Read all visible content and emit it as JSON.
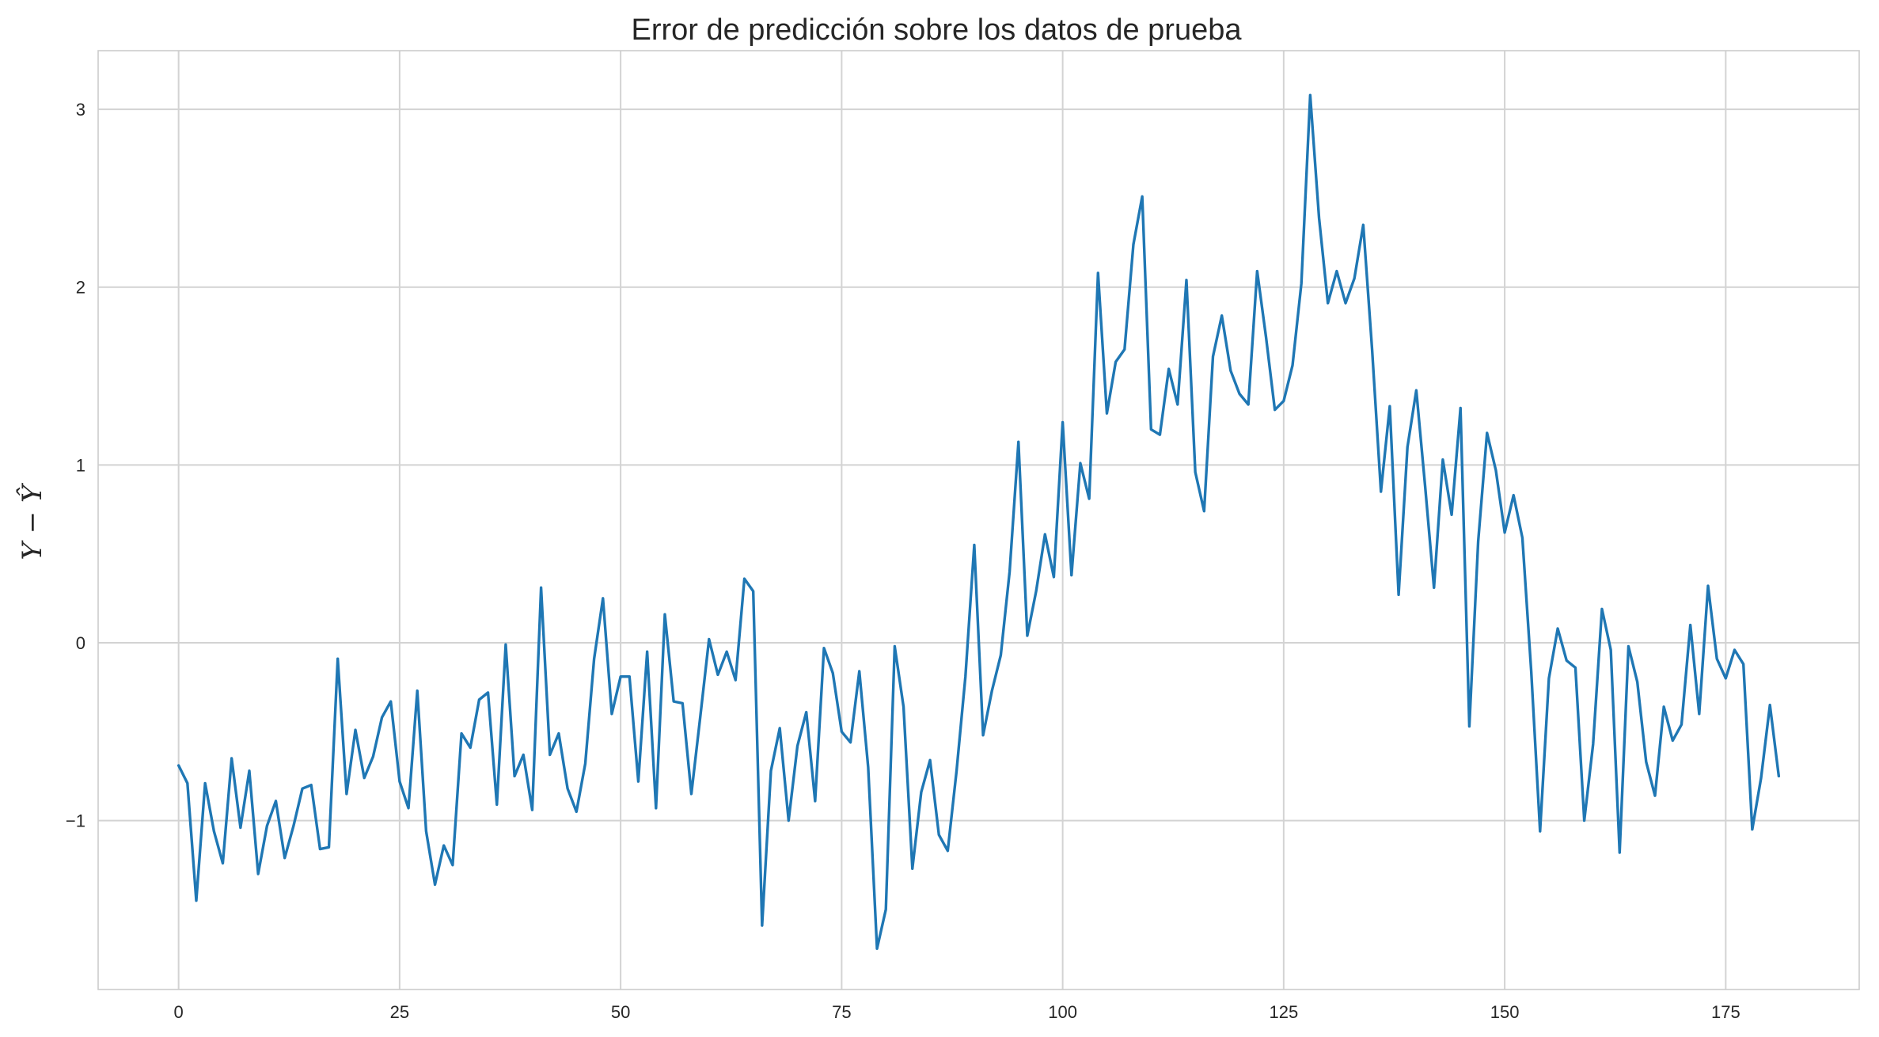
{
  "chart_data": {
    "type": "line",
    "title": "Error de predicción sobre los datos de prueba",
    "xlabel": "",
    "ylabel": "Y − Ŷ",
    "xlim": [
      -9.1,
      190.1
    ],
    "ylim": [
      -1.95,
      3.33
    ],
    "xticks": [
      0,
      25,
      50,
      75,
      100,
      125,
      150,
      175
    ],
    "yticks": [
      -1,
      0,
      1,
      2,
      3
    ],
    "ytick_labels": [
      "−1",
      "0",
      "1",
      "2",
      "3"
    ],
    "grid": true,
    "legend": "none",
    "color": "#1f77b4",
    "series": [
      {
        "x_start": 0,
        "values": [
          -0.69,
          -0.79,
          -1.45,
          -0.79,
          -1.06,
          -1.24,
          -0.65,
          -1.04,
          -0.72,
          -1.3,
          -1.03,
          -0.89,
          -1.21,
          -1.03,
          -0.82,
          -0.8,
          -1.16,
          -1.15,
          -0.09,
          -0.85,
          -0.49,
          -0.76,
          -0.64,
          -0.42,
          -0.33,
          -0.78,
          -0.93,
          -0.27,
          -1.06,
          -1.36,
          -1.14,
          -1.25,
          -0.51,
          -0.59,
          -0.32,
          -0.28,
          -0.91,
          -0.01,
          -0.75,
          -0.63,
          -0.94,
          0.31,
          -0.63,
          -0.51,
          -0.82,
          -0.95,
          -0.68,
          -0.09,
          0.25,
          -0.4,
          -0.19,
          -0.19,
          -0.78,
          -0.05,
          -0.93,
          0.16,
          -0.33,
          -0.34,
          -0.85,
          -0.42,
          0.02,
          -0.18,
          -0.05,
          -0.21,
          0.36,
          0.29,
          -1.59,
          -0.72,
          -0.48,
          -1.0,
          -0.58,
          -0.39,
          -0.89,
          -0.03,
          -0.17,
          -0.5,
          -0.56,
          -0.16,
          -0.7,
          -1.72,
          -1.5,
          -0.02,
          -0.36,
          -1.27,
          -0.84,
          -0.66,
          -1.08,
          -1.17,
          -0.72,
          -0.19,
          0.55,
          -0.52,
          -0.27,
          -0.07,
          0.4,
          1.13,
          0.04,
          0.29,
          0.61,
          0.37,
          1.24,
          0.38,
          1.01,
          0.81,
          2.08,
          1.29,
          1.58,
          1.65,
          2.24,
          2.51,
          1.2,
          1.17,
          1.54,
          1.34,
          2.04,
          0.96,
          0.74,
          1.61,
          1.84,
          1.53,
          1.4,
          1.34,
          2.09,
          1.72,
          1.31,
          1.36,
          1.56,
          2.02,
          3.08,
          2.39,
          1.91,
          2.09,
          1.91,
          2.05,
          2.35,
          1.65,
          0.85,
          1.33,
          0.27,
          1.1,
          1.42,
          0.88,
          0.31,
          1.03,
          0.72,
          1.32,
          -0.47,
          0.57,
          1.18,
          0.97,
          0.62,
          0.83,
          0.59,
          -0.16,
          -1.06,
          -0.2,
          0.08,
          -0.1,
          -0.14,
          -1.0,
          -0.57,
          0.19,
          -0.04,
          -1.18,
          -0.02,
          -0.22,
          -0.67,
          -0.86,
          -0.36,
          -0.55,
          -0.46,
          0.1,
          -0.4,
          0.32,
          -0.09,
          -0.2,
          -0.04,
          -0.12,
          -1.05,
          -0.76,
          -0.35,
          -0.75
        ]
      }
    ]
  }
}
